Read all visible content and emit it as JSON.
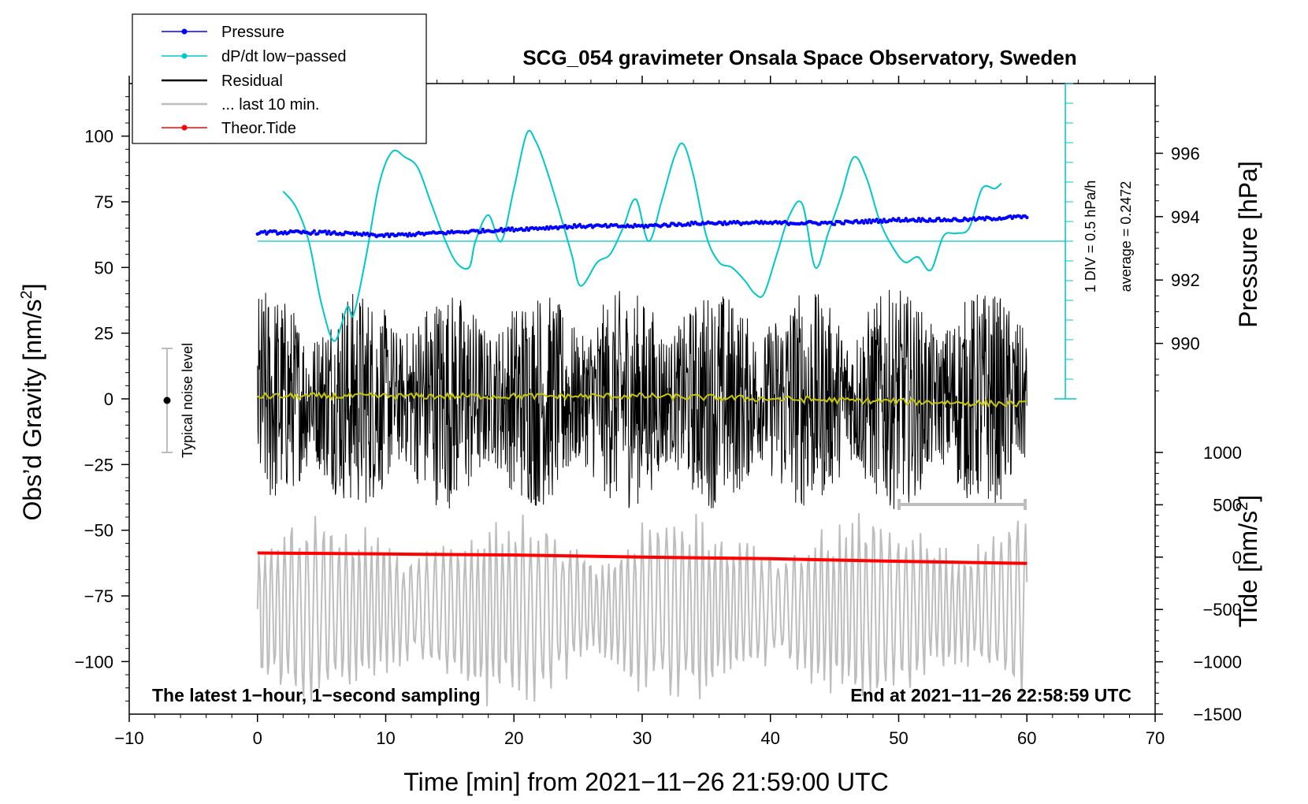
{
  "chart_data": {
    "type": "line",
    "title": "SCG_054 gravimeter Onsala Space Observatory, Sweden",
    "xlabel": "Time [min] from 2021−11−26 21:59:00 UTC",
    "ylabel_left": "Obs’d Gravity [nm/s",
    "ylabel_left_sup": "2",
    "ylabel_left_end": "]",
    "ylabel_right_pressure": "Pressure [hPa]",
    "ylabel_right_tide": "Tide [nm/s",
    "ylabel_right_tide_sup": "2",
    "ylabel_right_tide_end": "]",
    "xlim": [
      -10,
      70
    ],
    "ylim_gravity": [
      -120,
      120
    ],
    "ylim_pressure": [
      988.2,
      998.2
    ],
    "ylim_tide": [
      -1500,
      1500
    ],
    "x_ticks": [
      "−10",
      "0",
      "10",
      "20",
      "30",
      "40",
      "50",
      "60",
      "70"
    ],
    "x_tick_values": [
      -10,
      0,
      10,
      20,
      30,
      40,
      50,
      60,
      70
    ],
    "y_ticks_gravity": [
      "100",
      "75",
      "50",
      "25",
      "0",
      "−25",
      "−50",
      "−75",
      "−100"
    ],
    "y_tick_values_gravity": [
      100,
      75,
      50,
      25,
      0,
      -25,
      -50,
      -75,
      -100
    ],
    "y_ticks_pressure": [
      "996",
      "994",
      "992",
      "990"
    ],
    "y_tick_values_pressure": [
      996,
      994,
      992,
      990
    ],
    "y_ticks_tide": [
      "1000",
      "500",
      "0",
      "−500",
      "−1000",
      "−1500"
    ],
    "y_tick_values_tide": [
      1000,
      500,
      0,
      -500,
      -1000,
      -1500
    ],
    "legend": [
      {
        "label": "Pressure",
        "color": "#0000ff",
        "marker": true
      },
      {
        "label": "dP/dt low−passed",
        "color": "#00c8c8",
        "marker": true
      },
      {
        "label": "Residual",
        "color": "#000000",
        "marker": false
      },
      {
        "label": "... last 10 min.",
        "color": "#bdbdbd",
        "marker": false
      },
      {
        "label": "Theor.Tide",
        "color": "#ff0000",
        "marker": true
      }
    ],
    "annotations": {
      "left_bottom": "The latest 1−hour, 1−second sampling",
      "right_bottom": "End at 2021−11−26 22:58:59 UTC",
      "noise_label": "Typical noise level",
      "div_label": "1 DIV = 0.5 hPa/h",
      "avg_label": "average = 0.2472"
    },
    "series": [
      {
        "name": "Pressure",
        "axis": "pressure",
        "color": "#0000ff",
        "x": [
          0,
          5,
          10,
          15,
          20,
          25,
          30,
          35,
          40,
          45,
          50,
          55,
          60
        ],
        "values": [
          993.5,
          993.5,
          993.4,
          993.5,
          993.6,
          993.7,
          993.7,
          993.8,
          993.8,
          993.8,
          993.9,
          993.9,
          994.0
        ]
      },
      {
        "name": "dP/dt low-passed",
        "axis": "gravity",
        "color": "#00c8c8",
        "x": [
          2.0,
          3.0,
          4.0,
          5.0,
          6.0,
          7.0,
          7.5,
          8.5,
          9.5,
          10.5,
          11.5,
          12.5,
          13.5,
          14.5,
          15.5,
          16.5,
          17.0,
          18.0,
          19.0,
          20.0,
          21.0,
          21.7,
          22.5,
          23.5,
          24.5,
          25.2,
          26.5,
          27.5,
          28.5,
          29.5,
          30.5,
          31.5,
          32.5,
          33.2,
          34.0,
          35.0,
          36.0,
          37.0,
          38.0,
          38.8,
          39.5,
          40.5,
          41.5,
          42.5,
          43.5,
          44.5,
          45.5,
          46.5,
          47.5,
          48.5,
          49.5,
          50.5,
          51.5,
          52.5,
          53.5,
          54.5,
          55.5,
          56.5,
          57.5,
          58.0
        ],
        "values": [
          79,
          73,
          60,
          36,
          22,
          35,
          32,
          55,
          82,
          94,
          92,
          88,
          75,
          62,
          52,
          50,
          60,
          70,
          60,
          80,
          101,
          98,
          88,
          72,
          55,
          43,
          52,
          55,
          65,
          76,
          60,
          75,
          92,
          97,
          85,
          62,
          52,
          50,
          45,
          40,
          40,
          55,
          70,
          74,
          50,
          63,
          77,
          92,
          84,
          68,
          58,
          52,
          54,
          49,
          62,
          63,
          65,
          80,
          80,
          82
        ]
      },
      {
        "name": "Residual",
        "axis": "gravity",
        "color": "#000000",
        "x": [
          0,
          60
        ],
        "values": [
          0,
          0
        ],
        "amplitude": 42
      },
      {
        "name": "Residual smoothed",
        "axis": "gravity",
        "color": "#c8c800",
        "x": [
          0,
          10,
          20,
          30,
          40,
          50,
          60
        ],
        "values": [
          1,
          1,
          1,
          1,
          0,
          -1,
          -2
        ]
      },
      {
        "name": "... last 10 min.",
        "axis": "gravity",
        "color": "#bdbdbd",
        "x": [
          0,
          60
        ],
        "values": [
          -80,
          -80
        ],
        "amplitude": 38
      },
      {
        "name": "Theor.Tide",
        "axis": "tide",
        "color": "#ff0000",
        "x": [
          0,
          10,
          20,
          30,
          40,
          50,
          60
        ],
        "values": [
          40,
          30,
          20,
          0,
          -15,
          -40,
          -60
        ]
      }
    ]
  }
}
